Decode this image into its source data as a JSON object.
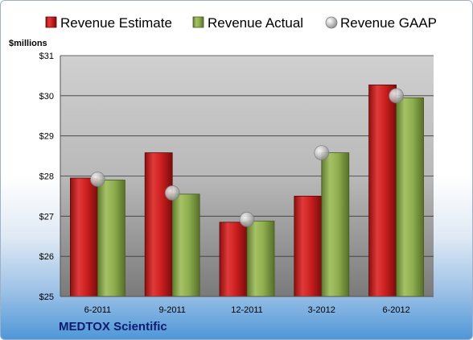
{
  "footer": {
    "company": "MEDTOX Scientific"
  },
  "colors": {
    "estimate": "#cc1f1f",
    "actual": "#8fae4e",
    "gaap": "#b7b7b7",
    "text": "#000000",
    "company": "#0b1b6f"
  },
  "chart_data": {
    "type": "bar",
    "title": "",
    "xlabel": "",
    "ylabel": "$millions",
    "ylim": [
      25,
      31
    ],
    "yticks": [
      25,
      26,
      27,
      28,
      29,
      30,
      31
    ],
    "ytick_labels": [
      "$25",
      "$26",
      "$27",
      "$28",
      "$29",
      "$30",
      "$31"
    ],
    "grid": true,
    "legend_position": "top",
    "categories": [
      "6-2011",
      "9-2011",
      "12-2011",
      "3-2012",
      "6-2012"
    ],
    "series": [
      {
        "name": "Revenue Estimate",
        "kind": "bar",
        "values": [
          27.95,
          28.58,
          26.85,
          27.5,
          30.27
        ]
      },
      {
        "name": "Revenue Actual",
        "kind": "bar",
        "values": [
          27.9,
          27.55,
          26.88,
          28.58,
          29.95
        ]
      },
      {
        "name": "Revenue GAAP",
        "kind": "marker",
        "values": [
          27.92,
          27.58,
          26.92,
          28.58,
          30.0
        ]
      }
    ]
  }
}
